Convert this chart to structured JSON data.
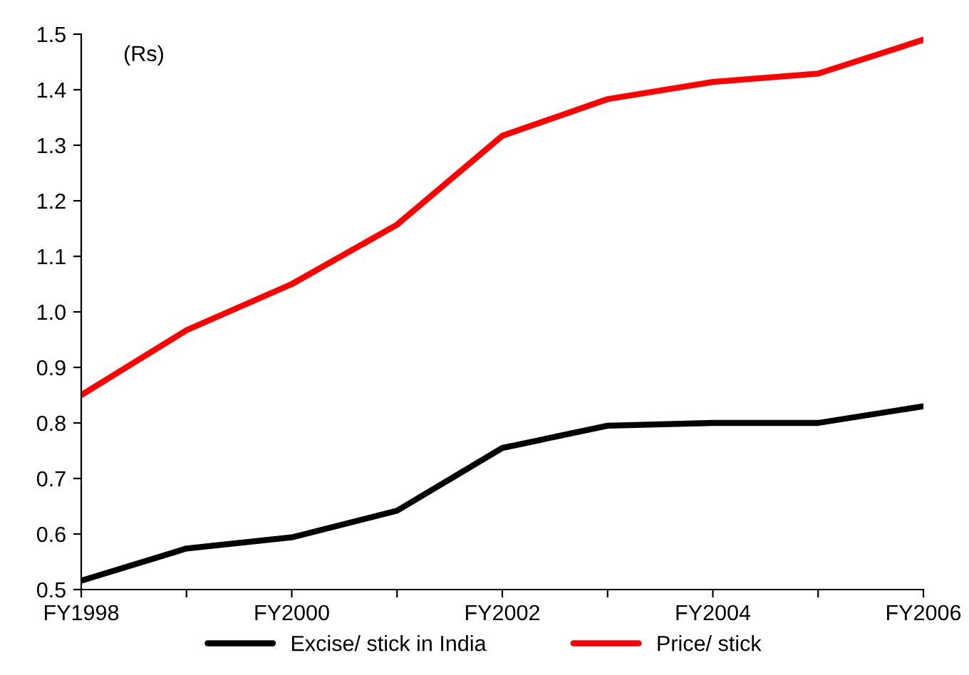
{
  "chart_data": {
    "type": "line",
    "categories": [
      "FY1998",
      null,
      "FY2000",
      null,
      "FY2002",
      null,
      "FY2004",
      null,
      "FY2006"
    ],
    "series": [
      {
        "name": "Excise/ stick in India",
        "color": "#000000",
        "values": [
          0.516,
          0.574,
          0.594,
          0.642,
          0.755,
          0.795,
          0.8,
          0.8,
          0.83
        ]
      },
      {
        "name": "Price/ stick",
        "color": "#ff0000",
        "values": [
          0.85,
          0.967,
          1.05,
          1.157,
          1.317,
          1.383,
          1.414,
          1.429,
          1.49
        ]
      }
    ],
    "ylim": [
      0.5,
      1.5
    ],
    "yticks": [
      0.5,
      0.6,
      0.7,
      0.8,
      0.9,
      {
        "value": 1.0,
        "label": "1.0"
      },
      1.1,
      1.2,
      1.3,
      1.4,
      1.5
    ],
    "annotations": [
      "(Rs)"
    ],
    "legend": "bottom",
    "grid": false,
    "marker": "none",
    "line_style": "solid"
  }
}
